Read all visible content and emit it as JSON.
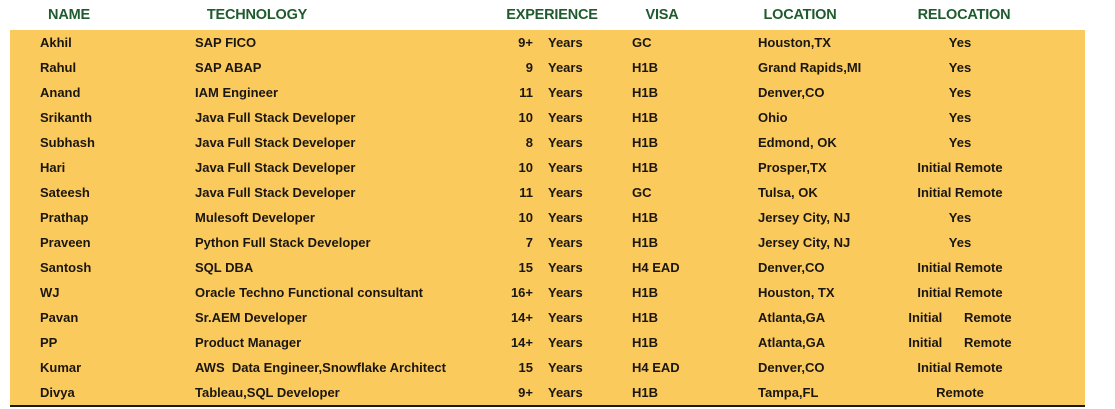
{
  "colors": {
    "panel_background": "#fbca5d",
    "header_text": "#1f5b2d",
    "body_text": "#1a1611",
    "bottom_border": "#1c1812",
    "page_background": "#ffffff"
  },
  "table": {
    "headers": [
      "NAME",
      "TECHNOLOGY",
      "EXPERIENCE",
      "VISA",
      "LOCATION",
      "RELOCATION"
    ],
    "rows": [
      {
        "name": "Akhil",
        "technology": "SAP FICO",
        "experience": "9+",
        "years": "Years",
        "visa": "GC",
        "location": "Houston,TX",
        "relocation": "Yes"
      },
      {
        "name": "Rahul",
        "technology": "SAP ABAP",
        "experience": "9",
        "years": "Years",
        "visa": "H1B",
        "location": "Grand Rapids,MI",
        "relocation": "Yes"
      },
      {
        "name": "Anand",
        "technology": "IAM Engineer",
        "experience": "11",
        "years": "Years",
        "visa": "H1B",
        "location": "Denver,CO",
        "relocation": "Yes"
      },
      {
        "name": "Srikanth",
        "technology": "Java Full Stack Developer",
        "experience": "10",
        "years": "Years",
        "visa": "H1B",
        "location": "Ohio",
        "relocation": "Yes"
      },
      {
        "name": "Subhash",
        "technology": "Java Full Stack Developer",
        "experience": "8",
        "years": "Years",
        "visa": "H1B",
        "location": "Edmond, OK",
        "relocation": "Yes"
      },
      {
        "name": "Hari",
        "technology": "Java Full Stack Developer",
        "experience": "10",
        "years": "Years",
        "visa": "H1B",
        "location": "Prosper,TX",
        "relocation": "Initial Remote"
      },
      {
        "name": "Sateesh",
        "technology": "Java Full Stack Developer",
        "experience": "11",
        "years": "Years",
        "visa": "GC",
        "location": "Tulsa, OK",
        "relocation": "Initial Remote"
      },
      {
        "name": "Prathap",
        "technology": "Mulesoft Developer",
        "experience": "10",
        "years": "Years",
        "visa": "H1B",
        "location": "Jersey City, NJ",
        "relocation": "Yes"
      },
      {
        "name": "Praveen",
        "technology": "Python Full Stack Developer",
        "experience": "7",
        "years": "Years",
        "visa": "H1B",
        "location": "Jersey City, NJ",
        "relocation": "Yes"
      },
      {
        "name": "Santosh",
        "technology": "SQL DBA",
        "experience": "15",
        "years": "Years",
        "visa": "H4 EAD",
        "location": "Denver,CO",
        "relocation": "Initial Remote"
      },
      {
        "name": "WJ",
        "technology": "Oracle Techno Functional consultant",
        "experience": "16+",
        "years": "Years",
        "visa": "H1B",
        "location": "Houston, TX",
        "relocation": "Initial Remote"
      },
      {
        "name": "Pavan",
        "technology": "Sr.AEM Developer",
        "experience": "14+",
        "years": "Years",
        "visa": "H1B",
        "location": "Atlanta,GA",
        "relocation": "Initial      Remote"
      },
      {
        "name": "PP",
        "technology": "Product Manager",
        "experience": "14+",
        "years": "Years",
        "visa": "H1B",
        "location": "Atlanta,GA",
        "relocation": "Initial      Remote"
      },
      {
        "name": "Kumar",
        "technology": "AWS  Data Engineer,Snowflake Architect",
        "experience": "15",
        "years": "Years",
        "visa": "H4 EAD",
        "location": "Denver,CO",
        "relocation": "Initial Remote"
      },
      {
        "name": "Divya",
        "technology": "Tableau,SQL Developer",
        "experience": "9+",
        "years": "Years",
        "visa": "H1B",
        "location": "Tampa,FL",
        "relocation": "Remote"
      }
    ]
  }
}
